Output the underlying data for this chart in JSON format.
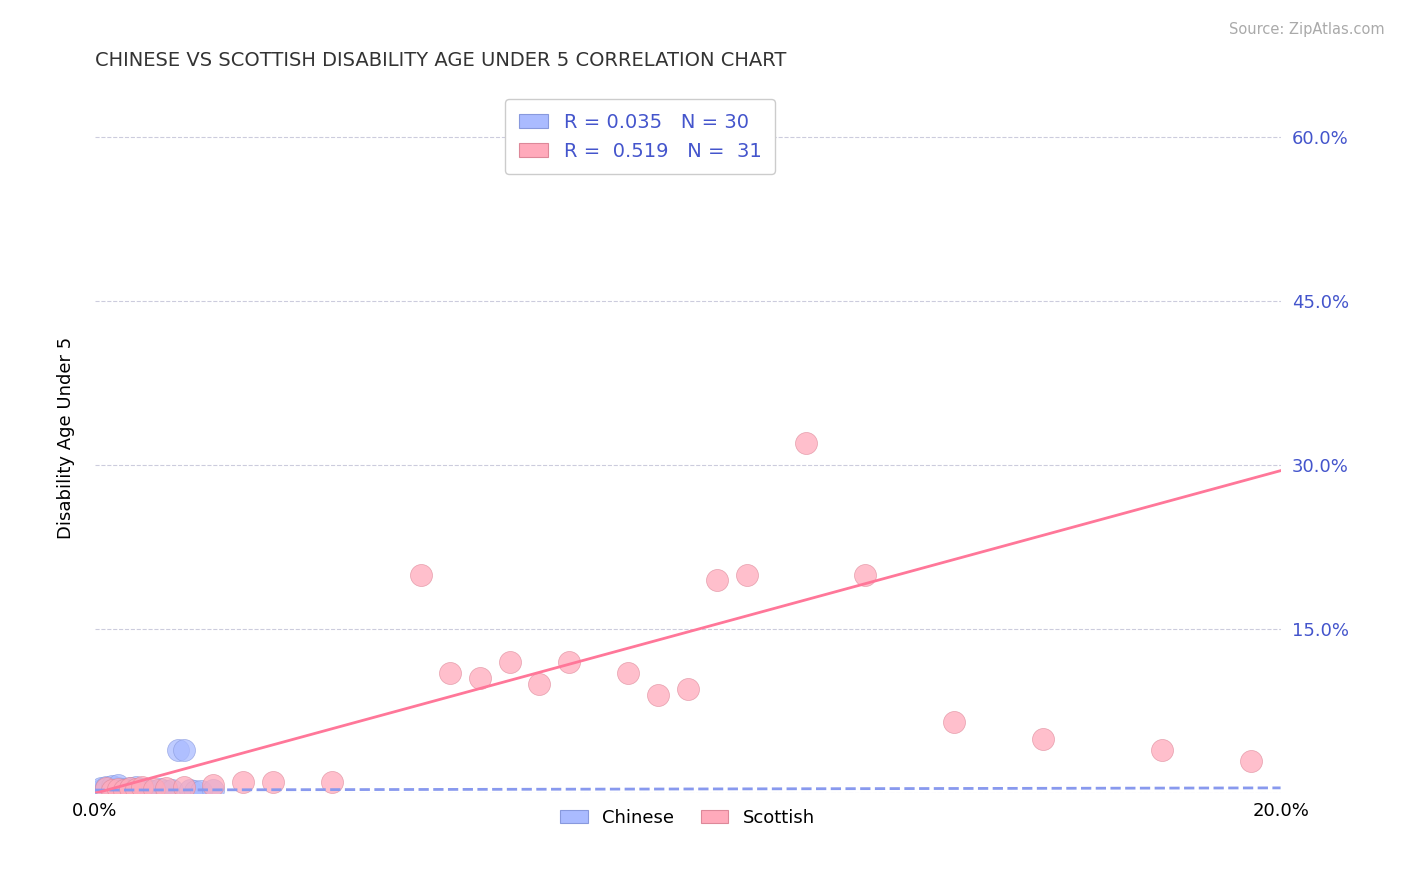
{
  "title": "CHINESE VS SCOTTISH DISABILITY AGE UNDER 5 CORRELATION CHART",
  "source": "Source: ZipAtlas.com",
  "ylabel": "Disability Age Under 5",
  "xlim": [
    0.0,
    0.2
  ],
  "ylim": [
    0.0,
    0.65
  ],
  "ytick_positions": [
    0.0,
    0.15,
    0.3,
    0.45,
    0.6
  ],
  "ytick_labels_right": [
    "",
    "15.0%",
    "30.0%",
    "45.0%",
    "60.0%"
  ],
  "background_color": "#ffffff",
  "grid_color": "#ccccdd",
  "chinese_color": "#aabbff",
  "scottish_color": "#ffaabb",
  "chinese_line_color": "#8899ee",
  "scottish_line_color": "#ff7799",
  "r_chinese": 0.035,
  "n_chinese": 30,
  "r_scottish": 0.519,
  "n_scottish": 31,
  "label_color": "#4455cc",
  "title_color": "#333333",
  "source_color": "#aaaaaa",
  "chinese_x": [
    0.001,
    0.001,
    0.002,
    0.002,
    0.003,
    0.003,
    0.003,
    0.004,
    0.004,
    0.004,
    0.005,
    0.005,
    0.006,
    0.006,
    0.007,
    0.007,
    0.008,
    0.008,
    0.009,
    0.009,
    0.01,
    0.011,
    0.012,
    0.013,
    0.014,
    0.015,
    0.016,
    0.017,
    0.018,
    0.02
  ],
  "chinese_y": [
    0.003,
    0.005,
    0.002,
    0.006,
    0.001,
    0.004,
    0.007,
    0.002,
    0.005,
    0.008,
    0.001,
    0.004,
    0.002,
    0.005,
    0.003,
    0.006,
    0.002,
    0.004,
    0.001,
    0.003,
    0.002,
    0.004,
    0.002,
    0.003,
    0.04,
    0.04,
    0.003,
    0.002,
    0.002,
    0.003
  ],
  "scottish_x": [
    0.002,
    0.003,
    0.004,
    0.005,
    0.006,
    0.007,
    0.008,
    0.01,
    0.012,
    0.015,
    0.02,
    0.025,
    0.03,
    0.04,
    0.055,
    0.06,
    0.065,
    0.07,
    0.075,
    0.08,
    0.09,
    0.095,
    0.1,
    0.105,
    0.11,
    0.12,
    0.13,
    0.145,
    0.16,
    0.18,
    0.195
  ],
  "scottish_y": [
    0.005,
    0.003,
    0.004,
    0.003,
    0.005,
    0.004,
    0.006,
    0.004,
    0.005,
    0.006,
    0.008,
    0.01,
    0.01,
    0.01,
    0.2,
    0.11,
    0.105,
    0.12,
    0.1,
    0.12,
    0.11,
    0.09,
    0.095,
    0.195,
    0.2,
    0.32,
    0.2,
    0.065,
    0.05,
    0.04,
    0.03
  ],
  "scottish_line_x0": 0.0,
  "scottish_line_y0": 0.0,
  "scottish_line_x1": 0.2,
  "scottish_line_y1": 0.295,
  "chinese_line_x0": 0.0,
  "chinese_line_y0": 0.003,
  "chinese_line_x1": 0.2,
  "chinese_line_y1": 0.005
}
